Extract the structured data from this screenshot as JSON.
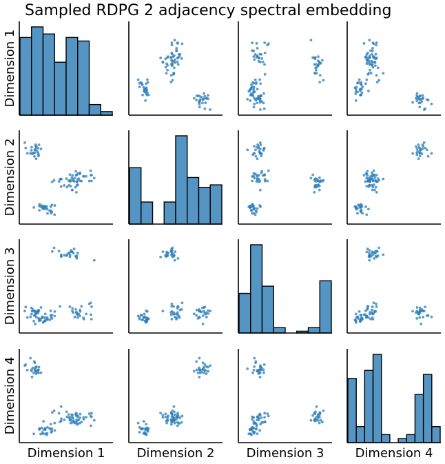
{
  "chart_data": {
    "type": "scatter-matrix",
    "title": "Sampled RDPG 2 adjacency spectral embedding",
    "dimensions": [
      "Dimension 1",
      "Dimension 2",
      "Dimension 3",
      "Dimension 4"
    ],
    "grid": false,
    "legend": "none",
    "colors": {
      "marker": "#2f7fba",
      "bar": "#5495c4",
      "edge": "#000000"
    },
    "diagonal_histograms": [
      {
        "dimension": "Dimension 1",
        "range": [
          0.0,
          1.0
        ],
        "counts": [
          22,
          25,
          23,
          15,
          22,
          21,
          3,
          1
        ]
      },
      {
        "dimension": "Dimension 2",
        "range": [
          0.0,
          1.0
        ],
        "counts": [
          23,
          9,
          0,
          9,
          36,
          19,
          15,
          16
        ]
      },
      {
        "dimension": "Dimension 3",
        "range": [
          0.0,
          1.0
        ],
        "counts": [
          22,
          49,
          26,
          3,
          0,
          1,
          3,
          29
        ]
      },
      {
        "dimension": "Dimension 4",
        "range": [
          0.0,
          1.0
        ],
        "counts": [
          16,
          4,
          18,
          22,
          2,
          0,
          1,
          2,
          12,
          17,
          4
        ]
      }
    ],
    "clusters": [
      {
        "n": 25,
        "center": [
          0.12,
          0.82,
          0.15,
          0.85
        ],
        "spread": [
          0.05,
          0.05,
          0.05,
          0.07
        ]
      },
      {
        "n": 25,
        "center": [
          0.25,
          0.12,
          0.12,
          0.09
        ],
        "spread": [
          0.06,
          0.04,
          0.04,
          0.04
        ]
      },
      {
        "n": 25,
        "center": [
          0.55,
          0.45,
          0.88,
          0.24
        ],
        "spread": [
          0.09,
          0.05,
          0.04,
          0.05
        ]
      },
      {
        "n": 25,
        "center": [
          0.68,
          0.5,
          0.18,
          0.23
        ],
        "spread": [
          0.09,
          0.06,
          0.07,
          0.05
        ]
      }
    ]
  }
}
